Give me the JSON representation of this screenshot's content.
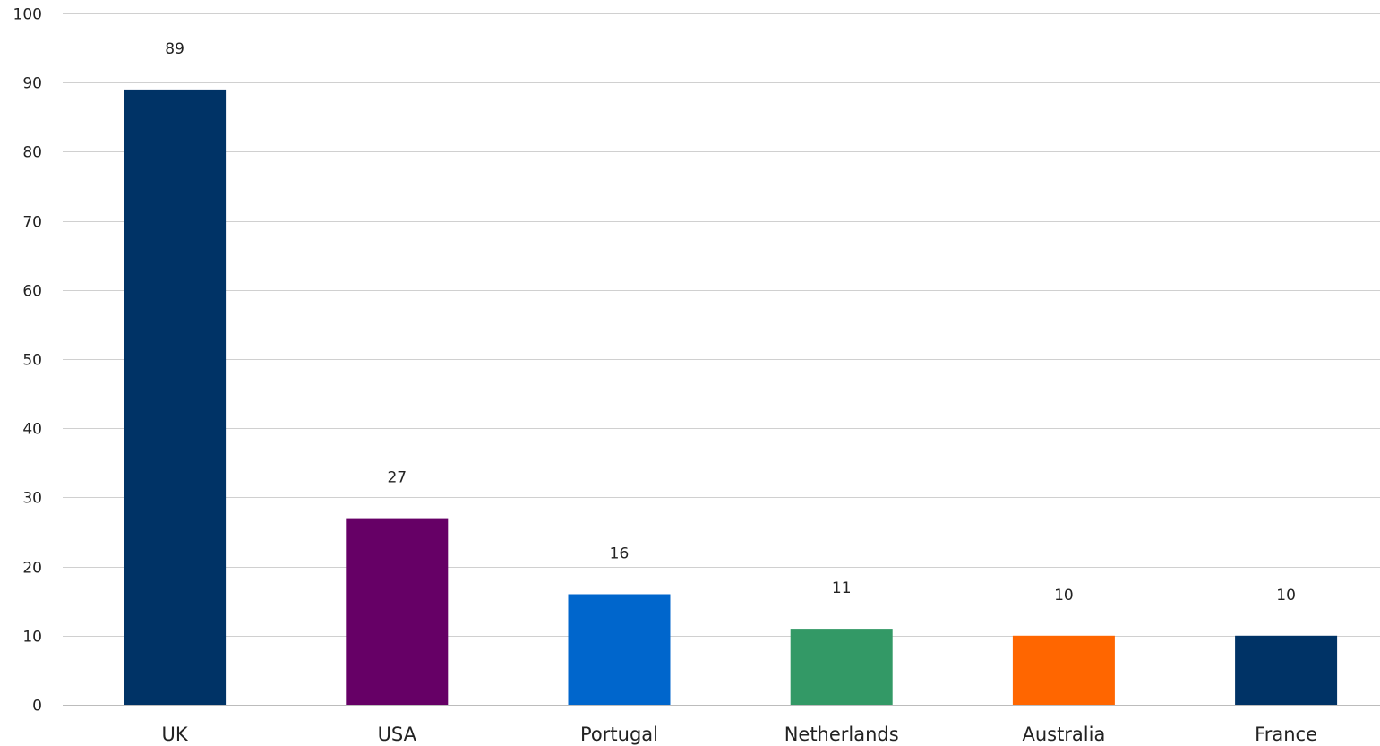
{
  "chart_data": {
    "type": "bar",
    "categories": [
      "UK",
      "USA",
      "Portugal",
      "Netherlands",
      "Australia",
      "France"
    ],
    "values": [
      89,
      27,
      16,
      11,
      10,
      10
    ],
    "data_labels": [
      "89",
      "27",
      "16",
      "11",
      "10",
      "10"
    ],
    "colors": [
      "#003366",
      "#660066",
      "#0066CC",
      "#339966",
      "#FF6600",
      "#003366"
    ],
    "title": "",
    "xlabel": "",
    "ylabel": "",
    "ylim": [
      0,
      100
    ],
    "yticks": [
      0,
      10,
      20,
      30,
      40,
      50,
      60,
      70,
      80,
      90,
      100
    ],
    "ytick_labels": [
      "0",
      "10",
      "20",
      "30",
      "40",
      "50",
      "60",
      "70",
      "80",
      "90",
      "100"
    ],
    "grid": true,
    "legend": "none"
  }
}
